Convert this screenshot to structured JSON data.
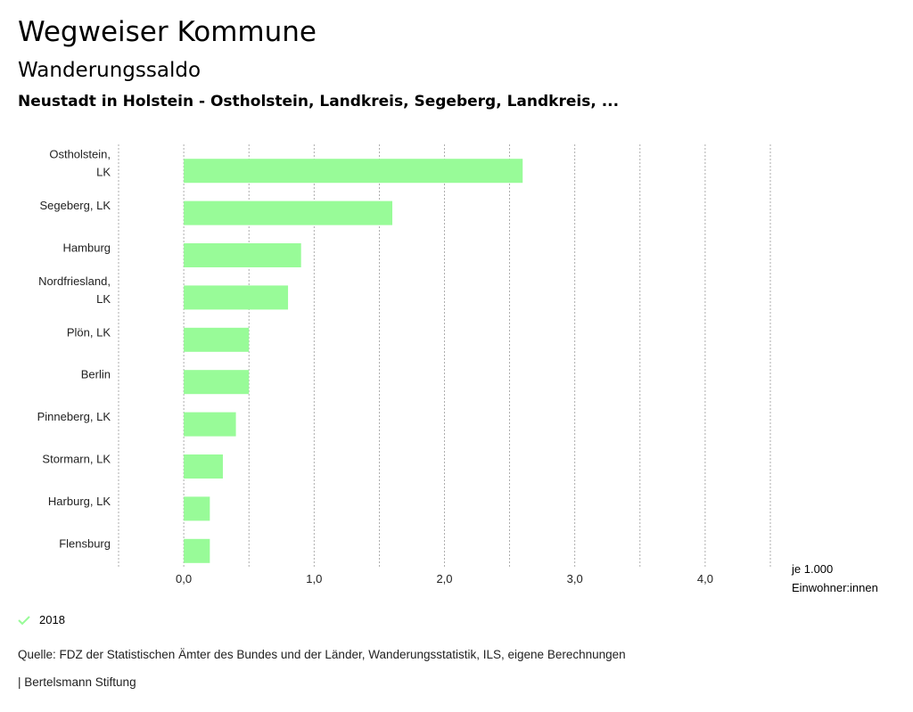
{
  "header": {
    "title": "Wegweiser Kommune",
    "subtitle": "Wanderungssaldo",
    "region": "Neustadt in Holstein - Ostholstein, Landkreis, Segeberg, Landkreis, ..."
  },
  "chart_data": {
    "type": "bar",
    "orientation": "horizontal",
    "categories": [
      [
        "Ostholstein,",
        "LK"
      ],
      [
        "Segeberg, LK"
      ],
      [
        "Hamburg"
      ],
      [
        "Nordfriesland,",
        "LK"
      ],
      [
        "Plön, LK"
      ],
      [
        "Berlin"
      ],
      [
        "Pinneberg, LK"
      ],
      [
        "Stormarn, LK"
      ],
      [
        "Harburg, LK"
      ],
      [
        "Flensburg"
      ]
    ],
    "series": [
      {
        "name": "2018",
        "values": [
          2.6,
          1.6,
          0.9,
          0.8,
          0.5,
          0.5,
          0.4,
          0.3,
          0.2,
          0.2
        ],
        "color": "#98fb98"
      }
    ],
    "xlim": [
      -0.5,
      4.5
    ],
    "xticks": [
      0,
      1,
      2,
      3,
      4
    ],
    "xtick_labels": [
      "0,0",
      "1,0",
      "2,0",
      "3,0",
      "4,0"
    ],
    "grid_step": 0.5,
    "xlabel": [
      "je 1.000",
      "Einwohner:innen"
    ],
    "grid": true,
    "legend_position": "bottom-left"
  },
  "footer": {
    "source": "Quelle: FDZ der Statistischen Ämter des Bundes und der Länder, Wanderungsstatistik, ILS, eigene Berechnungen",
    "publisher": "| Bertelsmann Stiftung"
  },
  "legend": {
    "check_color": "#98fb98",
    "icon": "check-icon"
  }
}
